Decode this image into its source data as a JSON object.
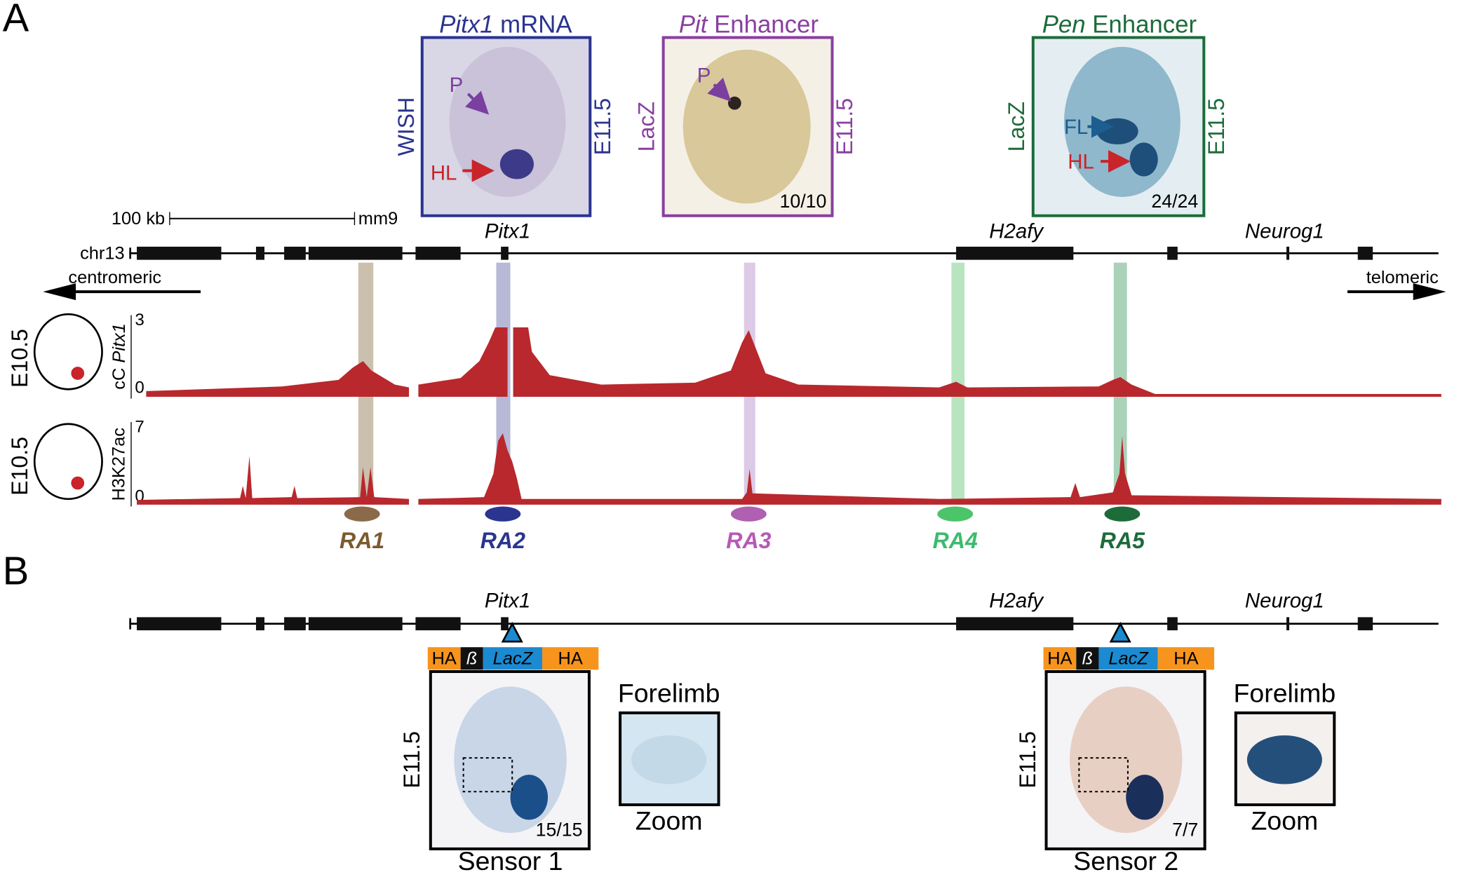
{
  "panel_a": {
    "label": "A",
    "images": [
      {
        "title_italic": "Pitx1",
        "title_rest": " mRNA",
        "left": "WISH",
        "right": "E11.5",
        "arrows": [
          "P",
          "HL"
        ]
      },
      {
        "title_italic": "Pit",
        "title_rest": " Enhancer",
        "left": "LacZ",
        "right": "E11.5",
        "arrows": [
          "P"
        ],
        "count": "10/10"
      },
      {
        "title_italic": "Pen",
        "title_rest": " Enhancer",
        "left": "LacZ",
        "right": "E11.5",
        "arrows": [
          "FL",
          "HL"
        ],
        "count": "24/24"
      }
    ],
    "scale_bar": {
      "length": "100 kb",
      "assembly": "mm9"
    },
    "genes": [
      "Pitx1",
      "H2afy",
      "Neurog1"
    ],
    "chromosome": "chr13",
    "left_direction": "centromeric",
    "right_direction": "telomeric",
    "tracks": [
      {
        "stage": "E10.5",
        "label_plain": "cC ",
        "label_italic": "Pitx1",
        "ticks": [
          "3",
          "0"
        ]
      },
      {
        "stage": "E10.5",
        "label_plain": "H3K27ac",
        "ticks": [
          "7",
          "0"
        ]
      }
    ],
    "regions": [
      "RA1",
      "RA2",
      "RA3",
      "RA4",
      "RA5"
    ]
  },
  "panel_b": {
    "label": "B",
    "genes": [
      "Pitx1",
      "H2afy",
      "Neurog1"
    ],
    "sensors": [
      {
        "construct": [
          "HA",
          "ß",
          "LacZ",
          "HA"
        ],
        "stage": "E11.5",
        "count": "15/15",
        "name": "Sensor 1",
        "zoom_title": "Forelimb",
        "zoom_label": "Zoom"
      },
      {
        "construct": [
          "HA",
          "ß",
          "LacZ",
          "HA"
        ],
        "stage": "E11.5",
        "count": "7/7",
        "name": "Sensor 2",
        "zoom_title": "Forelimb",
        "zoom_label": "Zoom"
      }
    ]
  }
}
